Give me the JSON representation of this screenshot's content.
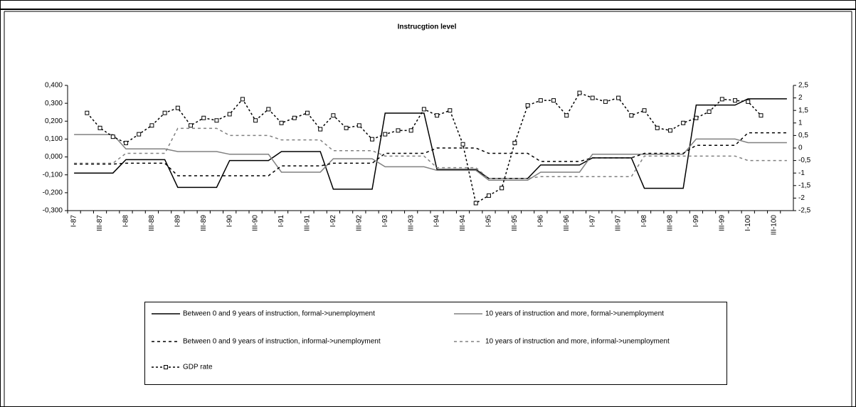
{
  "chart_data": {
    "type": "line",
    "title": "Instrucgtion level",
    "categories": [
      "I-87",
      null,
      "III-87",
      null,
      "I-88",
      null,
      "III-88",
      null,
      "I-89",
      null,
      "III-89",
      null,
      "I-90",
      null,
      "III-90",
      null,
      "I-91",
      null,
      "III-91",
      null,
      "I-92",
      null,
      "III-92",
      null,
      "I-93",
      null,
      "III-93",
      null,
      "I-94",
      null,
      "III-94",
      null,
      "I-95",
      null,
      "III-95",
      null,
      "I-96",
      null,
      "III-96",
      null,
      "I-97",
      null,
      "III-97",
      null,
      "I-98",
      null,
      "III-98",
      null,
      "I-99",
      null,
      "III-99",
      null,
      "I-100",
      null,
      "III-100",
      null
    ],
    "series": [
      {
        "name": "Between 0 and 9 years of instruction, formal->unemployment",
        "color": "#000000",
        "dash": "solid",
        "values": [
          -0.09,
          -0.09,
          -0.09,
          -0.09,
          -0.015,
          -0.015,
          -0.015,
          -0.015,
          -0.17,
          -0.17,
          -0.17,
          -0.17,
          -0.02,
          -0.02,
          -0.02,
          -0.02,
          0.03,
          0.03,
          0.03,
          0.03,
          -0.18,
          -0.18,
          -0.18,
          -0.18,
          0.245,
          0.245,
          0.245,
          0.245,
          -0.07,
          -0.07,
          -0.07,
          -0.07,
          -0.12,
          -0.12,
          -0.12,
          -0.12,
          -0.045,
          -0.045,
          -0.045,
          -0.045,
          -0.005,
          -0.005,
          -0.005,
          -0.005,
          -0.175,
          -0.175,
          -0.175,
          -0.175,
          0.29,
          0.29,
          0.29,
          0.29,
          0.325,
          0.325,
          0.325,
          0.325
        ]
      },
      {
        "name": "10 years of instruction and more, formal->unemployment",
        "color": "#808080",
        "dash": "solid",
        "values": [
          0.125,
          0.125,
          0.125,
          0.125,
          0.045,
          0.045,
          0.045,
          0.045,
          0.03,
          0.03,
          0.03,
          0.03,
          0.015,
          0.015,
          0.015,
          0.015,
          -0.085,
          -0.085,
          -0.085,
          -0.085,
          -0.01,
          -0.01,
          -0.01,
          -0.01,
          -0.055,
          -0.055,
          -0.055,
          -0.055,
          -0.075,
          -0.075,
          -0.075,
          -0.075,
          -0.13,
          -0.13,
          -0.13,
          -0.13,
          -0.085,
          -0.085,
          -0.085,
          -0.085,
          0.015,
          0.015,
          0.015,
          0.015,
          0.015,
          0.015,
          0.015,
          0.015,
          0.1,
          0.1,
          0.1,
          0.1,
          0.08,
          0.08,
          0.08,
          0.08
        ]
      },
      {
        "name": "Between 0 and 9 years of instruction,  informal->unemployment",
        "color": "#000000",
        "dash": "dashed",
        "values": [
          -0.04,
          -0.04,
          -0.04,
          -0.04,
          -0.035,
          -0.035,
          -0.035,
          -0.035,
          -0.105,
          -0.105,
          -0.105,
          -0.105,
          -0.105,
          -0.105,
          -0.105,
          -0.105,
          -0.05,
          -0.05,
          -0.05,
          -0.05,
          -0.035,
          -0.035,
          -0.035,
          -0.035,
          0.02,
          0.02,
          0.02,
          0.02,
          0.05,
          0.05,
          0.05,
          0.05,
          0.02,
          0.02,
          0.02,
          0.02,
          -0.025,
          -0.025,
          -0.025,
          -0.025,
          -0.005,
          -0.005,
          -0.005,
          -0.005,
          0.02,
          0.02,
          0.02,
          0.02,
          0.065,
          0.065,
          0.065,
          0.065,
          0.135,
          0.135,
          0.135,
          0.135
        ]
      },
      {
        "name": "10 years of instruction and more,  informal->unemployment",
        "color": "#808080",
        "dash": "dashed",
        "values": [
          -0.035,
          -0.035,
          -0.035,
          -0.035,
          0.02,
          0.02,
          0.02,
          0.02,
          0.16,
          0.16,
          0.16,
          0.16,
          0.12,
          0.12,
          0.12,
          0.12,
          0.095,
          0.095,
          0.095,
          0.095,
          0.035,
          0.035,
          0.035,
          0.035,
          0.005,
          0.005,
          0.005,
          0.005,
          -0.06,
          -0.06,
          -0.06,
          -0.06,
          -0.12,
          -0.12,
          -0.12,
          -0.12,
          -0.11,
          -0.11,
          -0.11,
          -0.11,
          -0.11,
          -0.11,
          -0.11,
          -0.11,
          0.005,
          0.005,
          0.005,
          0.005,
          0.005,
          0.005,
          0.005,
          0.005,
          -0.02,
          -0.02,
          -0.02,
          -0.02
        ]
      },
      {
        "name": "GDP rate",
        "color": "#000000",
        "dash": "dotted",
        "marker": "square",
        "axis": "y2",
        "values": [
          null,
          1.4,
          0.8,
          0.45,
          0.2,
          0.55,
          0.9,
          1.4,
          1.6,
          0.9,
          1.2,
          1.1,
          1.35,
          1.95,
          1.1,
          1.55,
          1.0,
          1.2,
          1.4,
          0.75,
          1.3,
          0.8,
          0.9,
          0.35,
          0.55,
          0.7,
          0.7,
          1.55,
          1.3,
          1.5,
          0.15,
          -2.2,
          -1.9,
          -1.6,
          0.2,
          1.7,
          1.9,
          1.9,
          1.3,
          2.2,
          2.0,
          1.85,
          2.0,
          1.3,
          1.5,
          0.8,
          0.7,
          1.0,
          1.2,
          1.45,
          1.95,
          1.9,
          1.85,
          1.3,
          null,
          null
        ]
      }
    ],
    "ylim": [
      -0.3,
      0.4
    ],
    "yticks": [
      {
        "value": 0.4,
        "label": "0,400"
      },
      {
        "value": 0.3,
        "label": "0,300"
      },
      {
        "value": 0.2,
        "label": "0,200"
      },
      {
        "value": 0.1,
        "label": "0,100"
      },
      {
        "value": 0,
        "label": "0,000"
      },
      {
        "value": -0.1,
        "label": "-0,100"
      },
      {
        "value": -0.2,
        "label": "-0,200"
      },
      {
        "value": -0.3,
        "label": "-0,300"
      }
    ],
    "y2lim": [
      -2.5,
      2.5
    ],
    "y2ticks": [
      {
        "value": 2.5,
        "label": "2,5"
      },
      2,
      {
        "value": 1.5,
        "label": "1,5"
      },
      1,
      {
        "value": 0.5,
        "label": "0,5"
      },
      0,
      {
        "value": -0.5,
        "label": "-0,5"
      },
      -1,
      {
        "value": -1.5,
        "label": "-1,5"
      },
      -2,
      {
        "value": -2.5,
        "label": "-2,5"
      }
    ],
    "legend": "bottom"
  }
}
